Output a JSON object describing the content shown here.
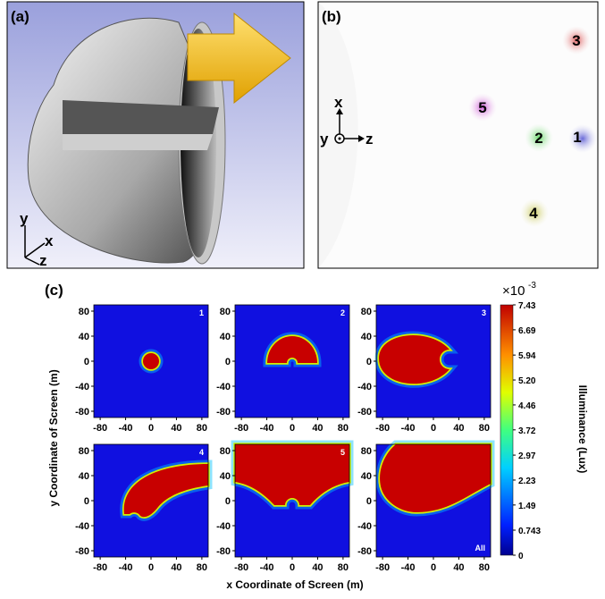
{
  "panel_a": {
    "label": "(a)",
    "axes": {
      "y": "y",
      "x": "x",
      "z": "z"
    }
  },
  "panel_b": {
    "label": "(b)",
    "spots": [
      "1",
      "2",
      "3",
      "4",
      "5"
    ],
    "axes": {
      "x": "x",
      "y": "y",
      "z": "z"
    }
  },
  "panel_c": {
    "label": "(c)",
    "subplots": [
      "1",
      "2",
      "3",
      "4",
      "5",
      "All"
    ],
    "xticks": [
      -80,
      -40,
      0,
      40,
      80
    ],
    "yticks": [
      80,
      40,
      0,
      -40,
      -80
    ],
    "xlabel": "x Coordinate of Screen (m)",
    "ylabel": "y Coordinate of Screen (m)",
    "colorbar": {
      "multiplier": "×10",
      "exponent": "-3",
      "label": "Illuminance (Lux)",
      "ticks": [
        7.43,
        6.69,
        5.94,
        {
          "value": 5.2,
          "label": "5.20"
        },
        4.46,
        3.72,
        2.97,
        2.23,
        1.49,
        0.743,
        0
      ]
    }
  }
}
